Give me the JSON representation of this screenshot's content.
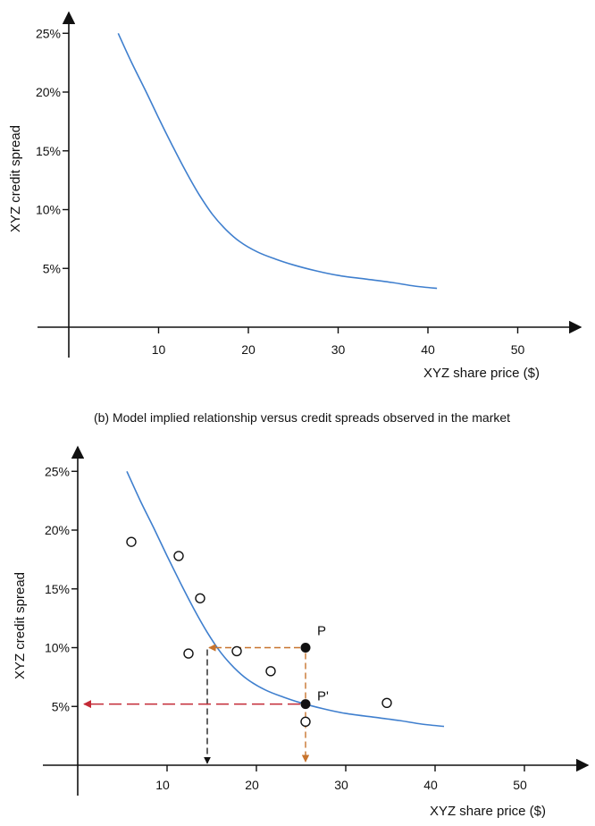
{
  "caption": "(b) Model implied relationship versus credit spreads observed in the market",
  "chart_data": [
    {
      "type": "line",
      "xlabel": "XYZ share price ($)",
      "ylabel": "XYZ credit spread",
      "x_ticks": [
        "10",
        "20",
        "30",
        "40",
        "50"
      ],
      "y_ticks": [
        "5%",
        "10%",
        "15%",
        "20%",
        "25%"
      ],
      "xlim": [
        0,
        57
      ],
      "ylim": [
        0,
        27.5
      ],
      "series": [
        {
          "x": [
            5.5,
            7,
            8.5,
            10,
            11.5,
            13,
            14.5,
            16,
            17.5,
            19,
            21,
            23,
            25,
            27.5,
            30,
            33,
            36,
            38.5,
            41
          ],
          "y": [
            25,
            22.5,
            20.2,
            17.8,
            15.5,
            13.3,
            11.3,
            9.6,
            8.3,
            7.3,
            6.4,
            5.8,
            5.3,
            4.8,
            4.4,
            4.1,
            3.8,
            3.5,
            3.3
          ]
        }
      ]
    },
    {
      "type": "scatter",
      "xlabel": "XYZ share price ($)",
      "ylabel": "XYZ credit spread",
      "x_ticks": [
        "10",
        "20",
        "30",
        "40",
        "50"
      ],
      "y_ticks": [
        "5%",
        "10%",
        "15%",
        "20%",
        "25%"
      ],
      "xlim": [
        0,
        57
      ],
      "ylim": [
        0,
        27.5
      ],
      "series": [
        {
          "x": [
            5.5,
            7,
            8.5,
            10,
            11.5,
            13,
            14.5,
            16,
            17.5,
            19,
            21,
            23,
            25,
            27.5,
            30,
            33,
            36,
            38.5,
            41
          ],
          "y": [
            25,
            22.5,
            20.2,
            17.8,
            15.5,
            13.3,
            11.3,
            9.6,
            8.3,
            7.3,
            6.4,
            5.8,
            5.3,
            4.8,
            4.4,
            4.1,
            3.8,
            3.5,
            3.3
          ]
        }
      ],
      "observed": [
        {
          "x": 6,
          "y": 19
        },
        {
          "x": 11.3,
          "y": 17.8
        },
        {
          "x": 13.7,
          "y": 14.2
        },
        {
          "x": 12.4,
          "y": 9.5
        },
        {
          "x": 17.8,
          "y": 9.7
        },
        {
          "x": 21.6,
          "y": 8.0
        },
        {
          "x": 25.5,
          "y": 3.7
        },
        {
          "x": 34.6,
          "y": 5.3
        }
      ],
      "points": [
        {
          "label": "P",
          "x": 25.5,
          "y": 10.0
        },
        {
          "label": "P'",
          "x": 25.5,
          "y": 5.2
        }
      ],
      "annotations": {
        "p_to_curve_x": 14.5,
        "curve_crossing_y": 10.0
      }
    }
  ],
  "colors": {
    "curve": "#3f7fce",
    "axis": "#111111",
    "orange": "#c8742d",
    "red": "#c42a36",
    "black": "#111111"
  }
}
